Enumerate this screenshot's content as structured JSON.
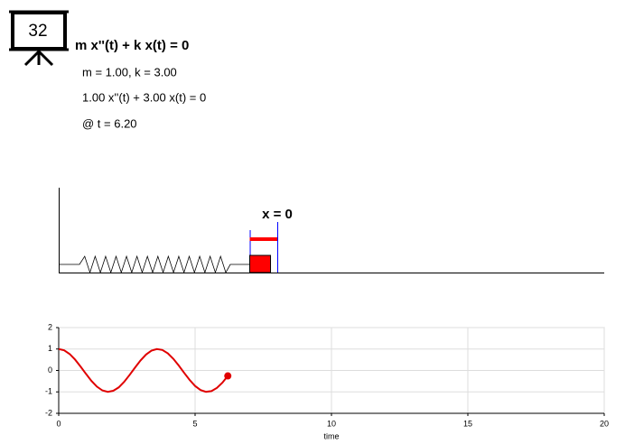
{
  "badge": "32",
  "equation": "m x''(t) + k x(t) = 0",
  "params": "m = 1.00, k = 3.00",
  "equation_values": "1.00 x''(t) + 3.00 x(t) = 0",
  "time_label": "@ t = 6.20",
  "spring_label": "x = 0",
  "chart_data": {
    "type": "line",
    "x_label": "time",
    "xlim": [
      0,
      20
    ],
    "xticks": [
      0,
      5,
      10,
      15,
      20
    ],
    "ylim": [
      -2,
      2
    ],
    "yticks": [
      -2,
      -1,
      0,
      1,
      2
    ],
    "grid": true,
    "series": [
      {
        "color": "#e00000",
        "x": [
          0,
          0.2,
          0.4,
          0.6,
          0.8,
          1.0,
          1.2,
          1.4,
          1.6,
          1.8,
          2.0,
          2.2,
          2.4,
          2.6,
          2.8,
          3.0,
          3.2,
          3.4,
          3.6,
          3.8,
          4.0,
          4.2,
          4.4,
          4.6,
          4.8,
          5.0,
          5.2,
          5.4,
          5.6,
          5.8,
          6.0,
          6.2
        ],
        "values": [
          1,
          0.941,
          0.769,
          0.507,
          0.184,
          -0.16,
          -0.487,
          -0.754,
          -0.932,
          -1.0,
          -0.948,
          -0.791,
          -0.531,
          -0.208,
          0.136,
          0.466,
          0.741,
          0.924,
          0.998,
          0.956,
          0.799,
          0.547,
          0.231,
          -0.113,
          -0.444,
          -0.724,
          -0.914,
          -0.997,
          -0.965,
          -0.814,
          -0.572,
          -0.254
        ]
      }
    ]
  }
}
